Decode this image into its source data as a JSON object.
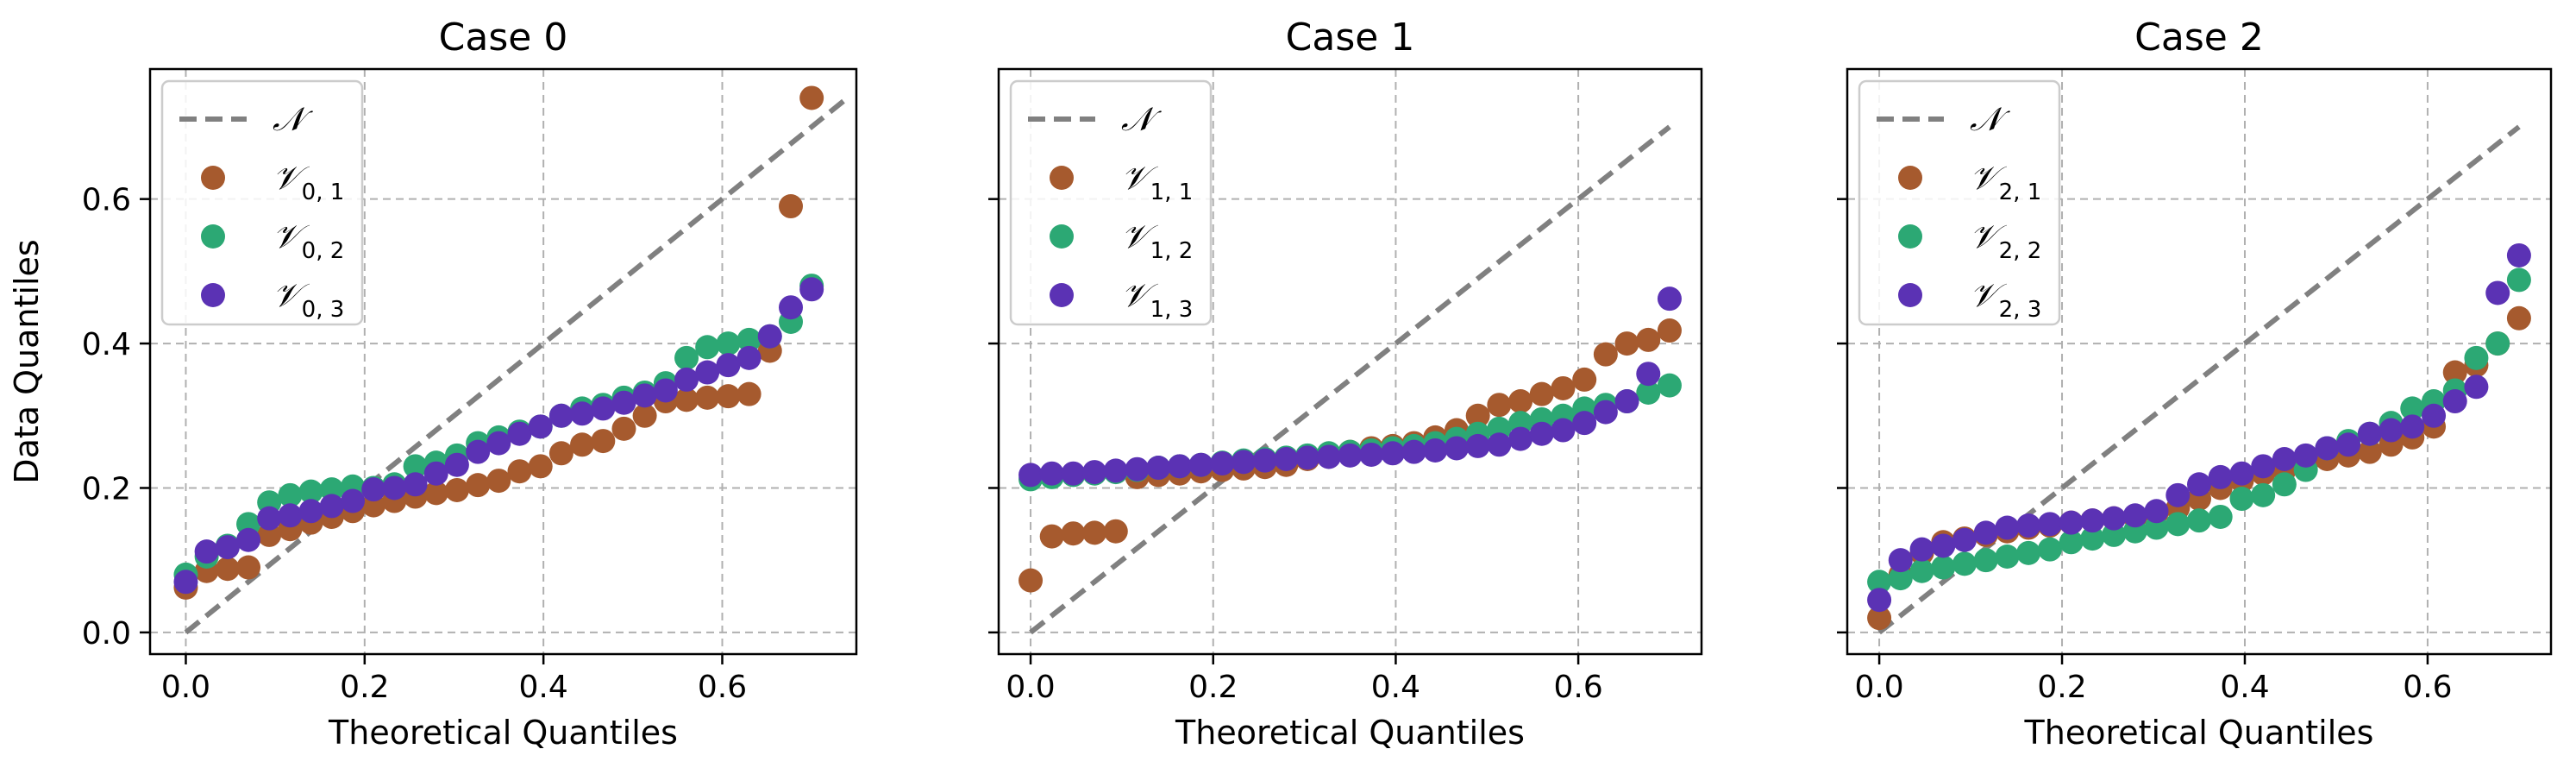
{
  "figure": {
    "ylabel": "Data Quantiles",
    "xlabel": "Theoretical Quantiles"
  },
  "colors": {
    "series1": "#a65a2e",
    "series2": "#2ca874",
    "series3": "#5b32b4",
    "reference": "#808080"
  },
  "chart_data": [
    {
      "type": "scatter",
      "title": "Case 0",
      "xlabel": "Theoretical Quantiles",
      "ylabel": "Data Quantiles",
      "xlim": [
        -0.04,
        0.75
      ],
      "ylim": [
        -0.03,
        0.78
      ],
      "xticks": [
        "0.0",
        "0.2",
        "0.4",
        "0.6"
      ],
      "yticks": [
        "0.0",
        "0.2",
        "0.4",
        "0.6"
      ],
      "reference": {
        "name": "𝒩",
        "x": [
          0.0,
          0.74
        ],
        "y": [
          0.0,
          0.74
        ]
      },
      "x": [
        0.0,
        0.0233,
        0.0467,
        0.07,
        0.0933,
        0.1167,
        0.14,
        0.1633,
        0.1867,
        0.21,
        0.2333,
        0.2567,
        0.28,
        0.3033,
        0.3267,
        0.35,
        0.3733,
        0.3967,
        0.42,
        0.4433,
        0.4667,
        0.49,
        0.5133,
        0.5367,
        0.56,
        0.5833,
        0.6067,
        0.63,
        0.6533,
        0.6767,
        0.7
      ],
      "series": [
        {
          "name": "𝒱",
          "sub": "0, 1",
          "values": [
            0.062,
            0.085,
            0.088,
            0.09,
            0.135,
            0.143,
            0.152,
            0.16,
            0.168,
            0.176,
            0.182,
            0.188,
            0.193,
            0.197,
            0.204,
            0.21,
            0.223,
            0.23,
            0.248,
            0.26,
            0.265,
            0.282,
            0.3,
            0.32,
            0.322,
            0.325,
            0.327,
            0.33,
            0.39,
            0.59,
            0.74
          ]
        },
        {
          "name": "𝒱",
          "sub": "0, 2",
          "values": [
            0.08,
            0.105,
            0.12,
            0.15,
            0.18,
            0.19,
            0.195,
            0.198,
            0.202,
            0.2,
            0.205,
            0.23,
            0.235,
            0.245,
            0.262,
            0.27,
            0.278,
            0.285,
            0.3,
            0.31,
            0.315,
            0.325,
            0.332,
            0.345,
            0.38,
            0.395,
            0.4,
            0.405,
            0.41,
            0.43,
            0.48
          ]
        },
        {
          "name": "𝒱",
          "sub": "0, 3",
          "values": [
            0.07,
            0.112,
            0.118,
            0.128,
            0.158,
            0.162,
            0.168,
            0.175,
            0.182,
            0.198,
            0.2,
            0.205,
            0.22,
            0.232,
            0.25,
            0.262,
            0.275,
            0.285,
            0.3,
            0.303,
            0.31,
            0.318,
            0.328,
            0.335,
            0.35,
            0.36,
            0.37,
            0.38,
            0.41,
            0.45,
            0.475
          ]
        }
      ]
    },
    {
      "type": "scatter",
      "title": "Case 1",
      "xlabel": "Theoretical Quantiles",
      "ylabel": "",
      "xlim": [
        -0.035,
        0.735
      ],
      "ylim": [
        -0.03,
        0.78
      ],
      "xticks": [
        "0.0",
        "0.2",
        "0.4",
        "0.6"
      ],
      "yticks": [],
      "reference": {
        "name": "𝒩",
        "x": [
          0.0,
          0.7
        ],
        "y": [
          0.0,
          0.7
        ]
      },
      "x": [
        0.0,
        0.0233,
        0.0467,
        0.07,
        0.0933,
        0.1167,
        0.14,
        0.1633,
        0.1867,
        0.21,
        0.2333,
        0.2567,
        0.28,
        0.3033,
        0.3267,
        0.35,
        0.3733,
        0.3967,
        0.42,
        0.4433,
        0.4667,
        0.49,
        0.5133,
        0.5367,
        0.56,
        0.5833,
        0.6067,
        0.63,
        0.6533,
        0.6767,
        0.7
      ],
      "series": [
        {
          "name": "𝒱",
          "sub": "1, 1",
          "values": [
            0.072,
            0.133,
            0.137,
            0.138,
            0.14,
            0.215,
            0.218,
            0.22,
            0.223,
            0.225,
            0.227,
            0.229,
            0.232,
            0.24,
            0.245,
            0.25,
            0.255,
            0.258,
            0.262,
            0.27,
            0.28,
            0.3,
            0.315,
            0.32,
            0.33,
            0.338,
            0.35,
            0.385,
            0.4,
            0.405,
            0.418
          ]
        },
        {
          "name": "𝒱",
          "sub": "1, 2",
          "values": [
            0.212,
            0.215,
            0.218,
            0.22,
            0.222,
            0.225,
            0.228,
            0.23,
            0.232,
            0.235,
            0.238,
            0.24,
            0.242,
            0.245,
            0.248,
            0.25,
            0.252,
            0.255,
            0.258,
            0.262,
            0.268,
            0.275,
            0.282,
            0.29,
            0.295,
            0.3,
            0.31,
            0.315,
            0.32,
            0.332,
            0.342
          ]
        },
        {
          "name": "𝒱",
          "sub": "1, 3",
          "values": [
            0.218,
            0.22,
            0.22,
            0.222,
            0.224,
            0.226,
            0.228,
            0.23,
            0.232,
            0.234,
            0.236,
            0.238,
            0.24,
            0.242,
            0.243,
            0.245,
            0.246,
            0.248,
            0.25,
            0.252,
            0.255,
            0.258,
            0.26,
            0.268,
            0.275,
            0.28,
            0.29,
            0.305,
            0.32,
            0.358,
            0.462
          ]
        }
      ]
    },
    {
      "type": "scatter",
      "title": "Case 2",
      "xlabel": "Theoretical Quantiles",
      "ylabel": "",
      "xlim": [
        -0.035,
        0.735
      ],
      "ylim": [
        -0.03,
        0.78
      ],
      "xticks": [
        "0.0",
        "0.2",
        "0.4",
        "0.6"
      ],
      "yticks": [],
      "reference": {
        "name": "𝒩",
        "x": [
          0.0,
          0.7
        ],
        "y": [
          0.0,
          0.7
        ]
      },
      "x": [
        0.0,
        0.0233,
        0.0467,
        0.07,
        0.0933,
        0.1167,
        0.14,
        0.1633,
        0.1867,
        0.21,
        0.2333,
        0.2567,
        0.28,
        0.3033,
        0.3267,
        0.35,
        0.3733,
        0.3967,
        0.42,
        0.4433,
        0.4667,
        0.49,
        0.5133,
        0.5367,
        0.56,
        0.5833,
        0.6067,
        0.63,
        0.6533,
        0.6767,
        0.7
      ],
      "series": [
        {
          "name": "𝒱",
          "sub": "2, 1",
          "values": [
            0.02,
            0.08,
            0.11,
            0.125,
            0.13,
            0.135,
            0.14,
            0.145,
            0.148,
            0.152,
            0.155,
            0.158,
            0.16,
            0.165,
            0.172,
            0.185,
            0.2,
            0.21,
            0.22,
            0.225,
            0.232,
            0.24,
            0.245,
            0.25,
            0.26,
            0.27,
            0.285,
            0.36,
            0.37,
            0.4,
            0.435
          ]
        },
        {
          "name": "𝒱",
          "sub": "2, 2",
          "values": [
            0.07,
            0.075,
            0.085,
            0.09,
            0.095,
            0.1,
            0.105,
            0.11,
            0.115,
            0.125,
            0.13,
            0.135,
            0.14,
            0.145,
            0.15,
            0.155,
            0.16,
            0.185,
            0.19,
            0.205,
            0.225,
            0.255,
            0.265,
            0.275,
            0.29,
            0.31,
            0.32,
            0.335,
            0.38,
            0.4,
            0.488
          ]
        },
        {
          "name": "𝒱",
          "sub": "2, 3",
          "values": [
            0.045,
            0.1,
            0.115,
            0.12,
            0.128,
            0.138,
            0.145,
            0.148,
            0.15,
            0.152,
            0.155,
            0.158,
            0.162,
            0.168,
            0.19,
            0.205,
            0.215,
            0.22,
            0.23,
            0.24,
            0.245,
            0.255,
            0.26,
            0.275,
            0.28,
            0.285,
            0.3,
            0.32,
            0.34,
            0.47,
            0.522
          ]
        }
      ]
    }
  ]
}
